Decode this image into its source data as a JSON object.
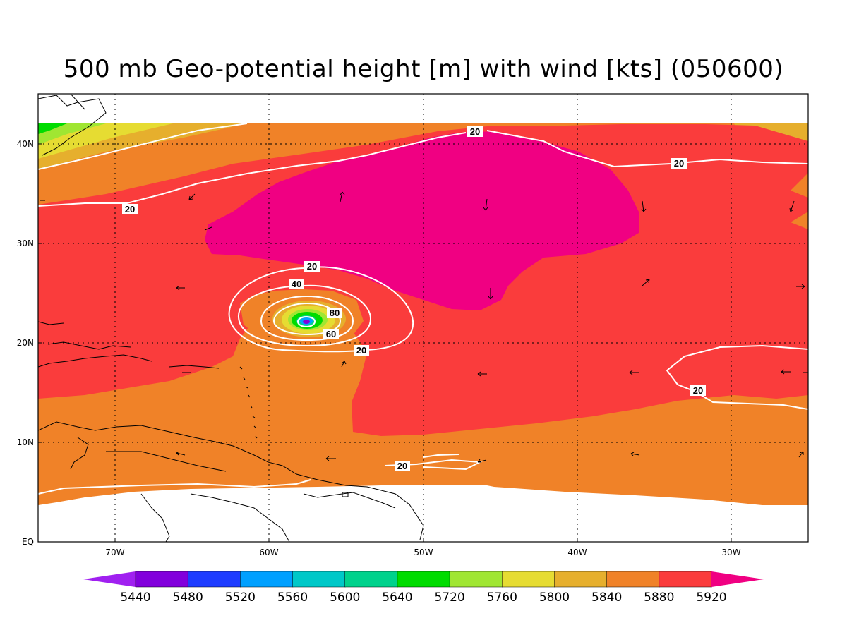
{
  "title": "500 mb Geo-potential height [m] with wind [kts] (050600)",
  "map": {
    "lon_range": [
      -75,
      -25
    ],
    "lat_range": [
      0,
      45
    ],
    "lon_ticks": [
      {
        "value": -70,
        "label": "70W"
      },
      {
        "value": -60,
        "label": "60W"
      },
      {
        "value": -50,
        "label": "50W"
      },
      {
        "value": -40,
        "label": "40W"
      },
      {
        "value": -30,
        "label": "30W"
      }
    ],
    "lat_ticks": [
      {
        "value": 0,
        "label": "EQ"
      },
      {
        "value": 10,
        "label": "10N"
      },
      {
        "value": 20,
        "label": "20N"
      },
      {
        "value": 30,
        "label": "30N"
      },
      {
        "value": 40,
        "label": "40N"
      }
    ],
    "gridlines": "dotted"
  },
  "colorbar": {
    "levels": [
      "5440",
      "5480",
      "5520",
      "5560",
      "5600",
      "5640",
      "5720",
      "5760",
      "5800",
      "5840",
      "5880",
      "5920"
    ],
    "colors": [
      "#a020f0",
      "#8200dc",
      "#1e3cff",
      "#00a0ff",
      "#00c8c8",
      "#00d28c",
      "#00dc00",
      "#a0e632",
      "#e6dc32",
      "#e6af2d",
      "#f08228",
      "#fa3c3c",
      "#f00082"
    ]
  },
  "wind_labels": {
    "westerlies_north": "20",
    "northeast": "20",
    "west_20": "20",
    "storm_20_north": "20",
    "storm_40": "40",
    "storm_80": "80",
    "storm_60": "60",
    "storm_20_south": "20",
    "east_20": "20",
    "south_20": "20"
  }
}
